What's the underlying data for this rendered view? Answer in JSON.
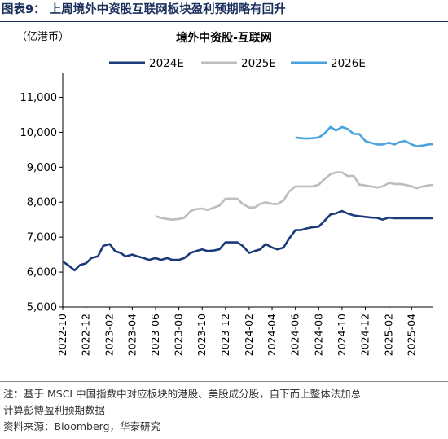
{
  "figure": {
    "title": "图表9：  上周境外中资股互联网板块盈利预期略有回升",
    "unit": "（亿港币）",
    "note_line1": "注：基于 MSCI 中国指数中对应板块的港股、美股成分股，自下而上整体法加总",
    "note_line2": "计算彭博盈利预期数据",
    "source": "资料来源：Bloomberg，华泰研究"
  },
  "colors": {
    "2024E": "#1b3a7a",
    "2025E": "#bdbdbd",
    "2026E": "#4aa3df"
  },
  "chart_data": {
    "type": "line",
    "title": "境外中资股-互联网",
    "ylabel": "（亿港币）",
    "ylim": [
      5000,
      11500
    ],
    "yticks": [
      5000,
      6000,
      7000,
      8000,
      9000,
      10000,
      11000
    ],
    "ytick_labels": [
      "5,000",
      "6,000",
      "7,000",
      "8,000",
      "9,000",
      "10,000",
      "11,000"
    ],
    "xlim": [
      "2022-10-01",
      "2025-05-28"
    ],
    "xticks": [
      "2022-10",
      "2022-12",
      "2023-02",
      "2023-04",
      "2023-06",
      "2023-08",
      "2023-10",
      "2023-12",
      "2024-02",
      "2024-04",
      "2024-06",
      "2024-08",
      "2024-10",
      "2024-12",
      "2025-02",
      "2025-04"
    ],
    "legend_position": "top",
    "grid": false,
    "series": [
      {
        "name": "2024E",
        "points": [
          [
            "2022-10-01",
            6300
          ],
          [
            "2022-10-15",
            6200
          ],
          [
            "2022-11-01",
            6050
          ],
          [
            "2022-11-15",
            6200
          ],
          [
            "2022-12-01",
            6250
          ],
          [
            "2022-12-15",
            6400
          ],
          [
            "2023-01-01",
            6450
          ],
          [
            "2023-01-15",
            6750
          ],
          [
            "2023-02-01",
            6800
          ],
          [
            "2023-02-15",
            6600
          ],
          [
            "2023-03-01",
            6550
          ],
          [
            "2023-03-15",
            6450
          ],
          [
            "2023-04-01",
            6500
          ],
          [
            "2023-04-15",
            6450
          ],
          [
            "2023-05-01",
            6400
          ],
          [
            "2023-05-15",
            6350
          ],
          [
            "2023-06-01",
            6400
          ],
          [
            "2023-06-15",
            6350
          ],
          [
            "2023-07-01",
            6400
          ],
          [
            "2023-07-15",
            6350
          ],
          [
            "2023-08-01",
            6350
          ],
          [
            "2023-08-15",
            6400
          ],
          [
            "2023-09-01",
            6550
          ],
          [
            "2023-09-15",
            6600
          ],
          [
            "2023-10-01",
            6650
          ],
          [
            "2023-10-15",
            6600
          ],
          [
            "2023-11-01",
            6620
          ],
          [
            "2023-11-15",
            6650
          ],
          [
            "2023-12-01",
            6850
          ],
          [
            "2023-12-15",
            6850
          ],
          [
            "2024-01-01",
            6850
          ],
          [
            "2024-01-15",
            6750
          ],
          [
            "2024-02-01",
            6550
          ],
          [
            "2024-02-15",
            6600
          ],
          [
            "2024-03-01",
            6650
          ],
          [
            "2024-03-15",
            6800
          ],
          [
            "2024-04-01",
            6700
          ],
          [
            "2024-04-15",
            6650
          ],
          [
            "2024-05-01",
            6700
          ],
          [
            "2024-05-15",
            6950
          ],
          [
            "2024-06-01",
            7200
          ],
          [
            "2024-06-15",
            7200
          ],
          [
            "2024-07-01",
            7250
          ],
          [
            "2024-07-15",
            7280
          ],
          [
            "2024-08-01",
            7300
          ],
          [
            "2024-08-15",
            7450
          ],
          [
            "2024-09-01",
            7650
          ],
          [
            "2024-09-15",
            7680
          ],
          [
            "2024-10-01",
            7750
          ],
          [
            "2024-10-15",
            7680
          ],
          [
            "2024-11-01",
            7620
          ],
          [
            "2024-11-15",
            7600
          ],
          [
            "2024-12-01",
            7580
          ],
          [
            "2024-12-15",
            7560
          ],
          [
            "2025-01-01",
            7550
          ],
          [
            "2025-01-15",
            7500
          ],
          [
            "2025-02-01",
            7560
          ],
          [
            "2025-02-15",
            7540
          ],
          [
            "2025-03-01",
            7540
          ],
          [
            "2025-03-15",
            7540
          ],
          [
            "2025-04-01",
            7540
          ],
          [
            "2025-04-15",
            7540
          ],
          [
            "2025-05-01",
            7540
          ],
          [
            "2025-05-15",
            7540
          ],
          [
            "2025-05-28",
            7540
          ]
        ]
      },
      {
        "name": "2025E",
        "points": [
          [
            "2023-06-01",
            7600
          ],
          [
            "2023-06-15",
            7550
          ],
          [
            "2023-07-01",
            7520
          ],
          [
            "2023-07-15",
            7500
          ],
          [
            "2023-08-01",
            7520
          ],
          [
            "2023-08-15",
            7550
          ],
          [
            "2023-09-01",
            7750
          ],
          [
            "2023-09-15",
            7800
          ],
          [
            "2023-10-01",
            7820
          ],
          [
            "2023-10-15",
            7780
          ],
          [
            "2023-11-01",
            7850
          ],
          [
            "2023-11-15",
            7900
          ],
          [
            "2023-12-01",
            8100
          ],
          [
            "2023-12-15",
            8100
          ],
          [
            "2024-01-01",
            8100
          ],
          [
            "2024-01-15",
            7950
          ],
          [
            "2024-02-01",
            7850
          ],
          [
            "2024-02-15",
            7850
          ],
          [
            "2024-03-01",
            7950
          ],
          [
            "2024-03-15",
            8000
          ],
          [
            "2024-04-01",
            7950
          ],
          [
            "2024-04-15",
            7950
          ],
          [
            "2024-05-01",
            8050
          ],
          [
            "2024-05-15",
            8300
          ],
          [
            "2024-06-01",
            8450
          ],
          [
            "2024-06-15",
            8450
          ],
          [
            "2024-07-01",
            8450
          ],
          [
            "2024-07-15",
            8450
          ],
          [
            "2024-08-01",
            8500
          ],
          [
            "2024-08-15",
            8650
          ],
          [
            "2024-09-01",
            8800
          ],
          [
            "2024-09-15",
            8850
          ],
          [
            "2024-10-01",
            8850
          ],
          [
            "2024-10-15",
            8750
          ],
          [
            "2024-11-01",
            8750
          ],
          [
            "2024-11-15",
            8500
          ],
          [
            "2024-12-01",
            8480
          ],
          [
            "2024-12-15",
            8450
          ],
          [
            "2025-01-01",
            8420
          ],
          [
            "2025-01-15",
            8450
          ],
          [
            "2025-02-01",
            8550
          ],
          [
            "2025-02-15",
            8520
          ],
          [
            "2025-03-01",
            8520
          ],
          [
            "2025-03-15",
            8500
          ],
          [
            "2025-04-01",
            8450
          ],
          [
            "2025-04-15",
            8400
          ],
          [
            "2025-05-01",
            8450
          ],
          [
            "2025-05-15",
            8480
          ],
          [
            "2025-05-28",
            8500
          ]
        ]
      },
      {
        "name": "2026E",
        "points": [
          [
            "2024-06-01",
            9850
          ],
          [
            "2024-06-15",
            9830
          ],
          [
            "2024-07-01",
            9820
          ],
          [
            "2024-07-15",
            9830
          ],
          [
            "2024-08-01",
            9850
          ],
          [
            "2024-08-15",
            9950
          ],
          [
            "2024-09-01",
            10150
          ],
          [
            "2024-09-15",
            10050
          ],
          [
            "2024-10-01",
            10150
          ],
          [
            "2024-10-15",
            10100
          ],
          [
            "2024-11-01",
            9950
          ],
          [
            "2024-11-15",
            9950
          ],
          [
            "2024-12-01",
            9750
          ],
          [
            "2024-12-15",
            9700
          ],
          [
            "2025-01-01",
            9650
          ],
          [
            "2025-01-15",
            9650
          ],
          [
            "2025-02-01",
            9700
          ],
          [
            "2025-02-15",
            9650
          ],
          [
            "2025-03-01",
            9720
          ],
          [
            "2025-03-15",
            9750
          ],
          [
            "2025-04-01",
            9650
          ],
          [
            "2025-04-15",
            9600
          ],
          [
            "2025-05-01",
            9620
          ],
          [
            "2025-05-15",
            9650
          ],
          [
            "2025-05-28",
            9660
          ]
        ]
      }
    ]
  }
}
